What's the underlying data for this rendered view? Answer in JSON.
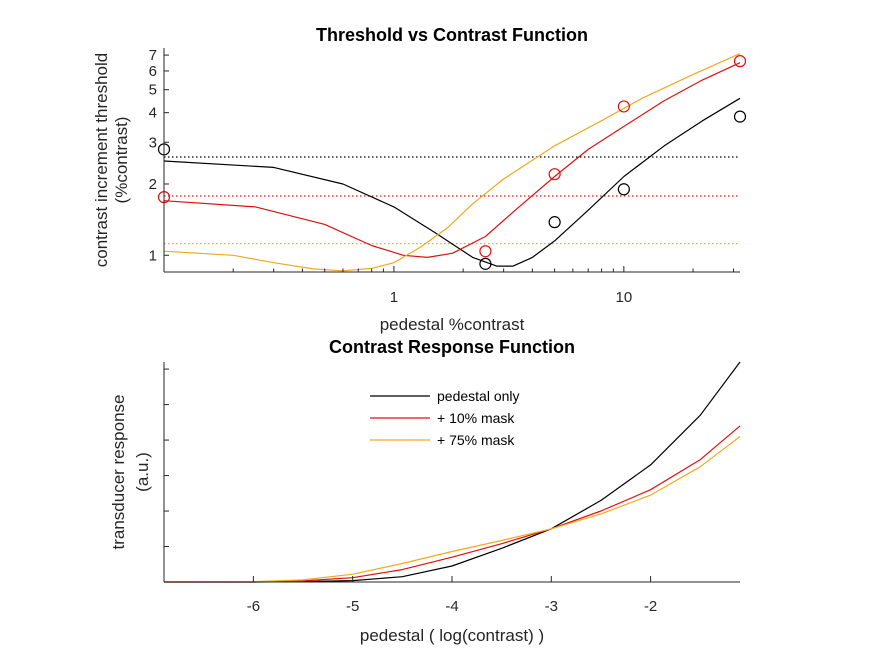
{
  "colors": {
    "pedestal_only": "#000000",
    "mask10": "#e01010",
    "mask75": "#f0aa1e",
    "axis": "#262626"
  },
  "chart_data": [
    {
      "type": "line",
      "title": "Threshold vs Contrast Function",
      "xlabel": "pedestal %contrast",
      "ylabel_line1": "contrast increment threshold",
      "ylabel_line2": "(%contrast)",
      "x_scale": "log",
      "y_scale": "log",
      "xlim": [
        0.1,
        32
      ],
      "ylim": [
        0.85,
        7.5
      ],
      "x_tick_labels": [
        "1",
        "10"
      ],
      "x_tick_values": [
        1,
        10
      ],
      "y_tick_labels": [
        "1",
        "2",
        "3",
        "4",
        "5",
        "6",
        "7"
      ],
      "y_tick_values": [
        1,
        2,
        3,
        4,
        5,
        6,
        7
      ],
      "series": [
        {
          "key": "pedestal_only",
          "curve": [
            [
              0.1,
              2.5
            ],
            [
              0.3,
              2.35
            ],
            [
              0.6,
              2.0
            ],
            [
              1,
              1.6
            ],
            [
              1.5,
              1.25
            ],
            [
              2.2,
              0.98
            ],
            [
              2.8,
              0.9
            ],
            [
              3.3,
              0.9
            ],
            [
              4,
              0.98
            ],
            [
              5,
              1.15
            ],
            [
              7,
              1.55
            ],
            [
              10,
              2.15
            ],
            [
              15,
              2.9
            ],
            [
              22,
              3.7
            ],
            [
              32,
              4.6
            ]
          ],
          "points": [
            [
              0.1,
              2.8
            ],
            [
              2.5,
              0.92
            ],
            [
              5,
              1.38
            ],
            [
              10,
              1.9
            ],
            [
              32,
              3.85
            ]
          ],
          "baseline": 2.6
        },
        {
          "key": "mask10",
          "curve": [
            [
              0.1,
              1.7
            ],
            [
              0.25,
              1.6
            ],
            [
              0.5,
              1.35
            ],
            [
              0.8,
              1.1
            ],
            [
              1.1,
              1.0
            ],
            [
              1.4,
              0.98
            ],
            [
              1.8,
              1.02
            ],
            [
              2.5,
              1.2
            ],
            [
              3.5,
              1.6
            ],
            [
              5,
              2.15
            ],
            [
              7,
              2.8
            ],
            [
              10,
              3.5
            ],
            [
              15,
              4.5
            ],
            [
              22,
              5.5
            ],
            [
              32,
              6.5
            ]
          ],
          "points": [
            [
              0.1,
              1.76
            ],
            [
              2.5,
              1.04
            ],
            [
              5,
              2.2
            ],
            [
              10,
              4.25
            ],
            [
              32,
              6.6
            ]
          ],
          "baseline": 1.78
        },
        {
          "key": "mask75",
          "curve": [
            [
              0.1,
              1.04
            ],
            [
              0.2,
              1.0
            ],
            [
              0.3,
              0.93
            ],
            [
              0.45,
              0.875
            ],
            [
              0.6,
              0.86
            ],
            [
              0.8,
              0.88
            ],
            [
              1.0,
              0.93
            ],
            [
              1.3,
              1.08
            ],
            [
              1.7,
              1.3
            ],
            [
              2.2,
              1.65
            ],
            [
              3,
              2.1
            ],
            [
              5,
              2.9
            ],
            [
              8,
              3.7
            ],
            [
              12,
              4.6
            ],
            [
              20,
              5.8
            ],
            [
              32,
              7.1
            ]
          ],
          "points": [],
          "baseline": 1.12
        }
      ]
    },
    {
      "type": "line",
      "title": "Contrast Response Function",
      "xlabel": "pedestal  ( log(contrast) )",
      "ylabel_line1": "transducer response",
      "ylabel_line2": "(a.u.)",
      "xlim": [
        -6.9,
        -1.1
      ],
      "ylim": [
        0,
        6.2
      ],
      "x_tick_labels": [
        "-6",
        "-5",
        "-4",
        "-3",
        "-2"
      ],
      "x_tick_values": [
        -6,
        -5,
        -4,
        -3,
        -2
      ],
      "y_tick_values": [
        0,
        1,
        2,
        3,
        4,
        5,
        6
      ],
      "legend_position": "top-center",
      "series": [
        {
          "key": "pedestal_only",
          "name": "pedestal only",
          "curve": [
            [
              -6.9,
              0
            ],
            [
              -6,
              0
            ],
            [
              -5.5,
              0.01
            ],
            [
              -5,
              0.04
            ],
            [
              -4.5,
              0.15
            ],
            [
              -4,
              0.45
            ],
            [
              -3.5,
              0.95
            ],
            [
              -3,
              1.5
            ],
            [
              -2.5,
              2.3
            ],
            [
              -2,
              3.3
            ],
            [
              -1.5,
              4.7
            ],
            [
              -1.1,
              6.2
            ]
          ]
        },
        {
          "key": "mask10",
          "name": "+ 10% mask",
          "curve": [
            [
              -6.9,
              0
            ],
            [
              -6,
              0
            ],
            [
              -5.5,
              0.03
            ],
            [
              -5,
              0.12
            ],
            [
              -4.5,
              0.35
            ],
            [
              -4,
              0.7
            ],
            [
              -3.5,
              1.08
            ],
            [
              -3,
              1.5
            ],
            [
              -2.5,
              2.0
            ],
            [
              -2,
              2.6
            ],
            [
              -1.5,
              3.45
            ],
            [
              -1.1,
              4.4
            ]
          ]
        },
        {
          "key": "mask75",
          "name": "+ 75% mask",
          "curve": [
            [
              -6.9,
              0
            ],
            [
              -6,
              0.01
            ],
            [
              -5.5,
              0.06
            ],
            [
              -5,
              0.22
            ],
            [
              -4.5,
              0.52
            ],
            [
              -4,
              0.86
            ],
            [
              -3.5,
              1.17
            ],
            [
              -3,
              1.5
            ],
            [
              -2.5,
              1.92
            ],
            [
              -2,
              2.45
            ],
            [
              -1.5,
              3.25
            ],
            [
              -1.1,
              4.1
            ]
          ]
        }
      ]
    }
  ]
}
